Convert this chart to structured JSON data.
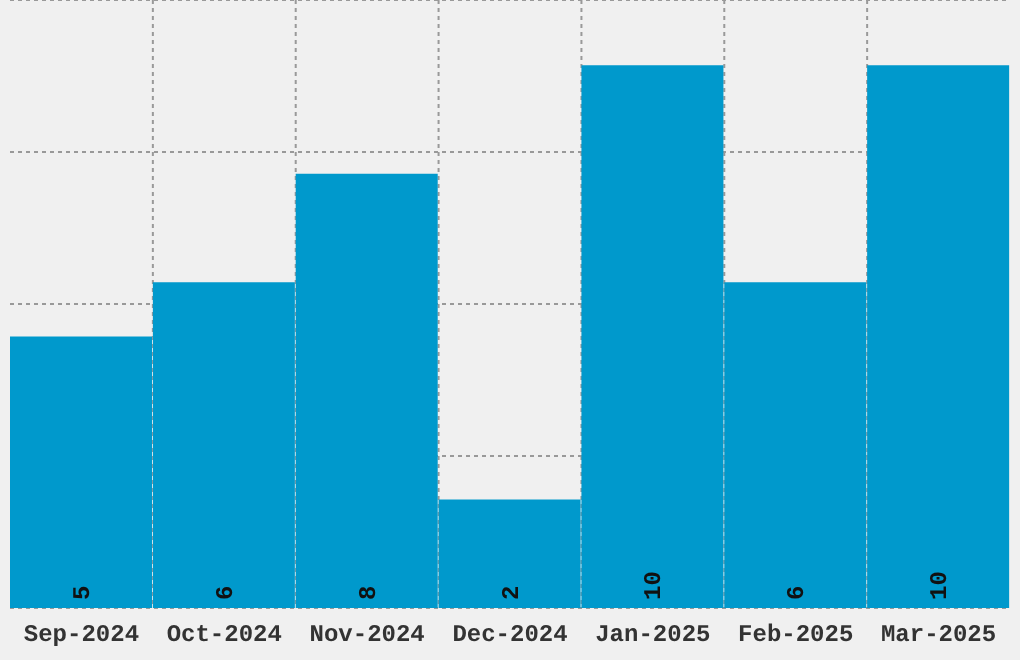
{
  "chart_data": {
    "type": "bar",
    "categories": [
      "Sep-2024",
      "Oct-2024",
      "Nov-2024",
      "Dec-2024",
      "Jan-2025",
      "Feb-2025",
      "Mar-2025"
    ],
    "values": [
      5,
      6,
      8,
      2,
      10,
      6,
      10
    ],
    "color": "#0099cc",
    "data_labels": true,
    "ylim": [
      0,
      11.2
    ],
    "yticks": [
      {
        "value": 2.8,
        "label": null
      },
      {
        "value": 5.6,
        "label": null
      },
      {
        "value": 8.4,
        "label": null
      }
    ],
    "tick_labels": "x",
    "grid": true
  }
}
